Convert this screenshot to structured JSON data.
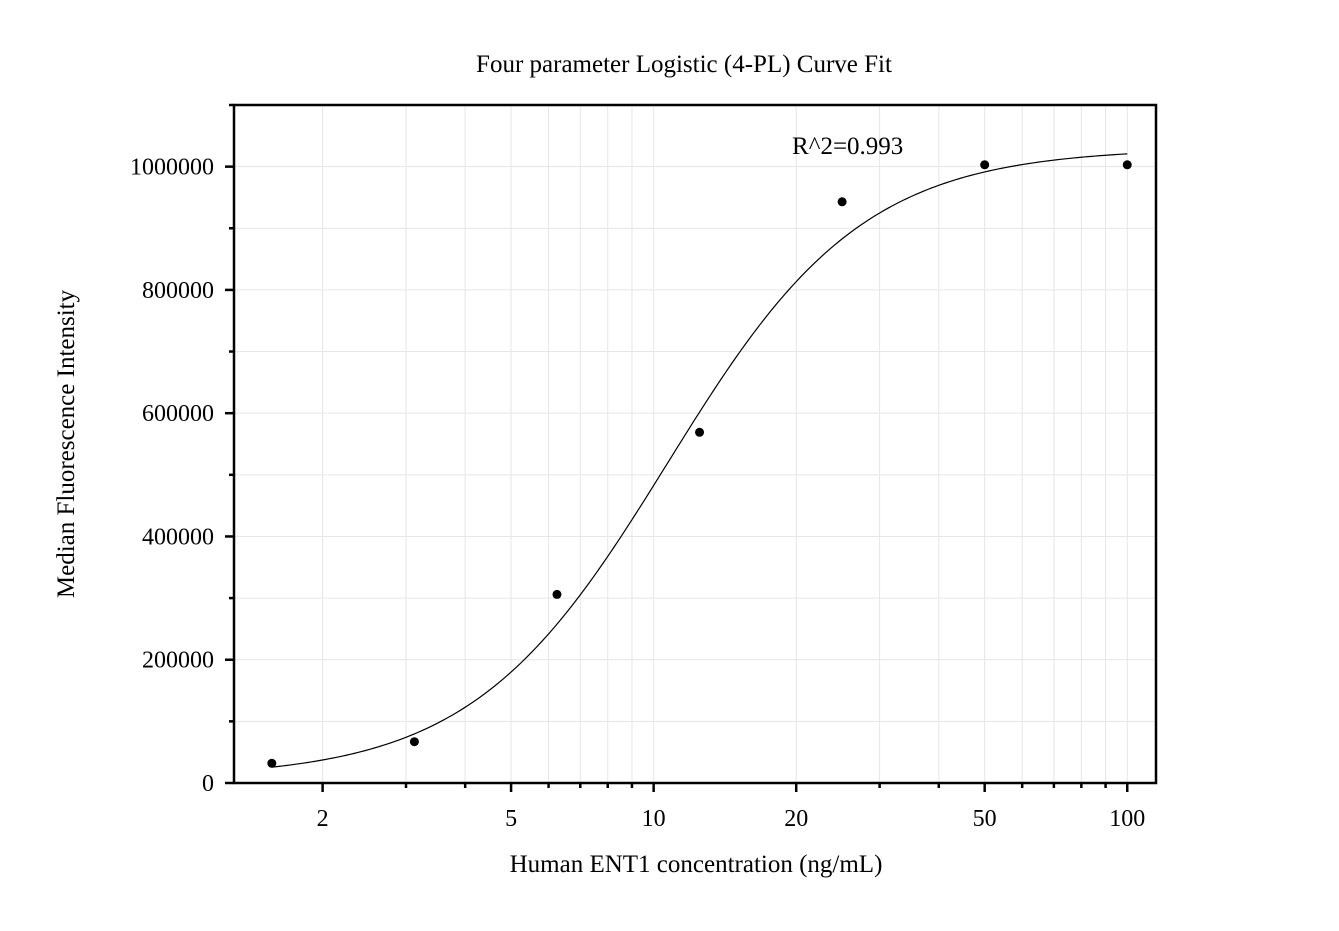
{
  "chart_data": {
    "type": "scatter",
    "title": "Four parameter Logistic (4-PL) Curve Fit",
    "xlabel": "Human ENT1 concentration (ng/mL)",
    "ylabel": "Median Fluorescence Intensity",
    "x_scale": "log",
    "xlim": [
      1.3,
      115
    ],
    "ylim": [
      0,
      1100000
    ],
    "x_ticks": [
      2,
      5,
      10,
      20,
      50,
      100
    ],
    "x_tick_labels": [
      "2",
      "5",
      "10",
      "20",
      "50",
      "100"
    ],
    "y_ticks": [
      0,
      200000,
      400000,
      600000,
      800000,
      1000000
    ],
    "y_tick_labels": [
      "0",
      "200000",
      "400000",
      "600000",
      "800000",
      "1000000"
    ],
    "grid": true,
    "points": {
      "x": [
        1.5625,
        3.125,
        6.25,
        12.5,
        25,
        50,
        100
      ],
      "y": [
        32000,
        67000,
        306000,
        569000,
        943000,
        1003000,
        1003000
      ]
    },
    "fit": {
      "model": "4PL",
      "A": 8000,
      "D": 1030000,
      "C": 10.7,
      "B": 2.1,
      "x_range": [
        1.5625,
        100
      ]
    },
    "annotations": [
      {
        "text": "R^2=0.993",
        "x": 50,
        "y": 1050000
      }
    ]
  }
}
